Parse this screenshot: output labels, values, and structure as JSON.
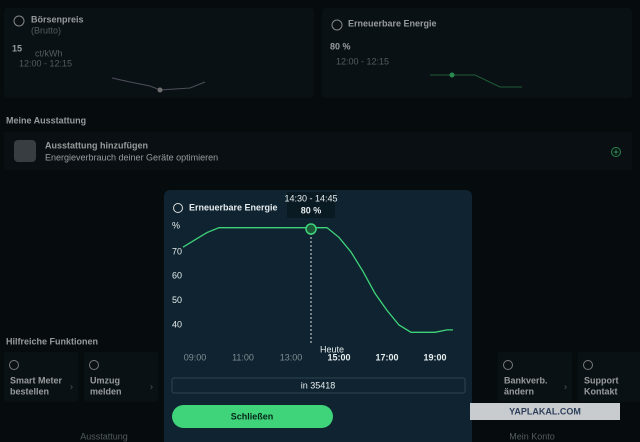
{
  "cards": [
    {
      "title": "Börsenpreis",
      "subtitle": "(Brutto)",
      "value": "15",
      "unit": "ct/kWh",
      "time": "12:00 - 12:15"
    },
    {
      "title": "Erneuerbare Energie",
      "value": "80 %",
      "time": "12:00 - 12:15"
    }
  ],
  "equipment": {
    "heading": "Meine Ausstattung",
    "title": "Ausstattung hinzufügen",
    "subtitle": "Energieverbrauch deiner Geräte optimieren"
  },
  "functions": {
    "heading": "Hilfreiche Funktionen",
    "items": [
      [
        "Smart Meter",
        "bestellen"
      ],
      [
        "Umzug",
        "melden"
      ],
      [
        "Bankverb.",
        "ändern"
      ],
      [
        "Support",
        "Kontakt"
      ]
    ]
  },
  "nav": [
    "Ausstattung",
    "Mein Konto"
  ],
  "modal": {
    "title": "Erneuerbare Energie",
    "tooltip": {
      "time": "14:30 - 14:45",
      "value": "80 %"
    },
    "marker": "Heute",
    "location": "in 35418",
    "button": "Schließen"
  },
  "chart_data": {
    "type": "line",
    "y_label": "%",
    "x": [
      8.5,
      9,
      9.5,
      10,
      11,
      12,
      13,
      14,
      14.5,
      15,
      15.5,
      16,
      16.5,
      17,
      17.5,
      18,
      18.5,
      19,
      19.5,
      19.75
    ],
    "series": [
      {
        "color": "#3fd47a",
        "values": [
          72,
          75,
          78,
          80,
          80,
          80,
          80,
          80,
          80,
          76,
          70,
          62,
          53,
          46,
          40,
          37,
          37,
          37,
          38,
          38
        ]
      }
    ],
    "xlim": [
      8.25,
      20
    ],
    "ylim": [
      34,
      82
    ],
    "yticks": [
      40,
      50,
      60,
      70
    ],
    "xticks": [
      {
        "value": 9,
        "label": "09:00"
      },
      {
        "value": 11,
        "label": "11:00"
      },
      {
        "value": 13,
        "label": "13:00"
      },
      {
        "value": 15,
        "label": "15:00"
      },
      {
        "value": 17,
        "label": "17:00"
      },
      {
        "value": 19,
        "label": "19:00"
      }
    ]
  },
  "watermark": "YAPLAKAL.COM"
}
